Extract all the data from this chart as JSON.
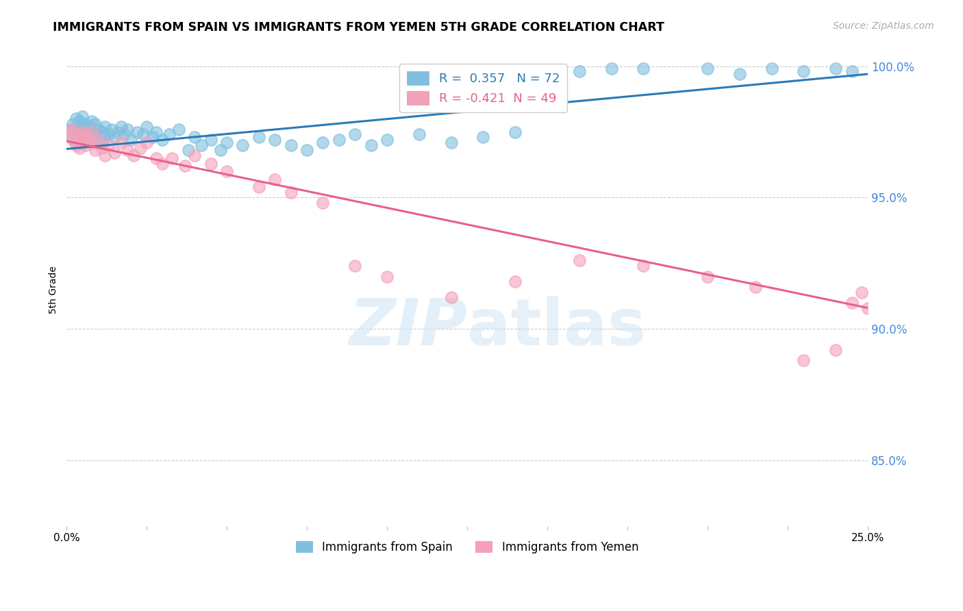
{
  "title": "IMMIGRANTS FROM SPAIN VS IMMIGRANTS FROM YEMEN 5TH GRADE CORRELATION CHART",
  "source": "Source: ZipAtlas.com",
  "ylabel": "5th Grade",
  "xlim": [
    0.0,
    0.25
  ],
  "ylim": [
    0.825,
    1.005
  ],
  "ytick_vals": [
    0.85,
    0.9,
    0.95,
    1.0
  ],
  "ytick_labels": [
    "85.0%",
    "90.0%",
    "95.0%",
    "100.0%"
  ],
  "legend_blue_r": "0.357",
  "legend_blue_n": "72",
  "legend_pink_r": "-0.421",
  "legend_pink_n": "49",
  "blue_color": "#7fbfdf",
  "pink_color": "#f4a0b8",
  "blue_line_color": "#2a7ab8",
  "pink_line_color": "#e8608a",
  "blue_line_x": [
    0.0,
    0.25
  ],
  "blue_line_y": [
    0.9685,
    0.997
  ],
  "pink_line_x": [
    0.0,
    0.25
  ],
  "pink_line_y": [
    0.9715,
    0.908
  ],
  "blue_scatter_x": [
    0.001,
    0.002,
    0.002,
    0.003,
    0.003,
    0.003,
    0.004,
    0.004,
    0.004,
    0.005,
    0.005,
    0.005,
    0.006,
    0.006,
    0.007,
    0.007,
    0.008,
    0.008,
    0.009,
    0.009,
    0.01,
    0.01,
    0.011,
    0.011,
    0.012,
    0.012,
    0.013,
    0.014,
    0.015,
    0.016,
    0.017,
    0.018,
    0.019,
    0.02,
    0.022,
    0.024,
    0.025,
    0.027,
    0.028,
    0.03,
    0.032,
    0.035,
    0.038,
    0.04,
    0.042,
    0.045,
    0.048,
    0.05,
    0.055,
    0.06,
    0.065,
    0.07,
    0.075,
    0.08,
    0.085,
    0.09,
    0.095,
    0.1,
    0.11,
    0.12,
    0.13,
    0.14,
    0.15,
    0.16,
    0.17,
    0.18,
    0.2,
    0.21,
    0.22,
    0.23,
    0.24,
    0.245
  ],
  "blue_scatter_y": [
    0.976,
    0.978,
    0.973,
    0.98,
    0.975,
    0.971,
    0.979,
    0.976,
    0.972,
    0.981,
    0.977,
    0.972,
    0.978,
    0.974,
    0.977,
    0.972,
    0.979,
    0.975,
    0.978,
    0.974,
    0.976,
    0.972,
    0.975,
    0.971,
    0.977,
    0.973,
    0.974,
    0.976,
    0.973,
    0.975,
    0.977,
    0.974,
    0.976,
    0.972,
    0.975,
    0.974,
    0.977,
    0.973,
    0.975,
    0.972,
    0.974,
    0.976,
    0.968,
    0.973,
    0.97,
    0.972,
    0.968,
    0.971,
    0.97,
    0.973,
    0.972,
    0.97,
    0.968,
    0.971,
    0.972,
    0.974,
    0.97,
    0.972,
    0.974,
    0.971,
    0.973,
    0.975,
    0.998,
    0.998,
    0.999,
    0.999,
    0.999,
    0.997,
    0.999,
    0.998,
    0.999,
    0.998
  ],
  "pink_scatter_x": [
    0.001,
    0.002,
    0.002,
    0.003,
    0.003,
    0.004,
    0.004,
    0.005,
    0.005,
    0.006,
    0.006,
    0.007,
    0.008,
    0.008,
    0.009,
    0.01,
    0.011,
    0.012,
    0.013,
    0.015,
    0.017,
    0.019,
    0.021,
    0.023,
    0.025,
    0.028,
    0.03,
    0.033,
    0.037,
    0.04,
    0.045,
    0.05,
    0.06,
    0.065,
    0.07,
    0.08,
    0.09,
    0.1,
    0.12,
    0.14,
    0.16,
    0.18,
    0.2,
    0.215,
    0.23,
    0.24,
    0.245,
    0.248,
    0.25
  ],
  "pink_scatter_y": [
    0.975,
    0.976,
    0.972,
    0.974,
    0.97,
    0.973,
    0.969,
    0.975,
    0.971,
    0.974,
    0.97,
    0.972,
    0.975,
    0.971,
    0.968,
    0.972,
    0.969,
    0.966,
    0.97,
    0.967,
    0.971,
    0.968,
    0.966,
    0.969,
    0.971,
    0.965,
    0.963,
    0.965,
    0.962,
    0.966,
    0.963,
    0.96,
    0.954,
    0.957,
    0.952,
    0.948,
    0.924,
    0.92,
    0.912,
    0.918,
    0.926,
    0.924,
    0.92,
    0.916,
    0.888,
    0.892,
    0.91,
    0.914,
    0.908
  ]
}
